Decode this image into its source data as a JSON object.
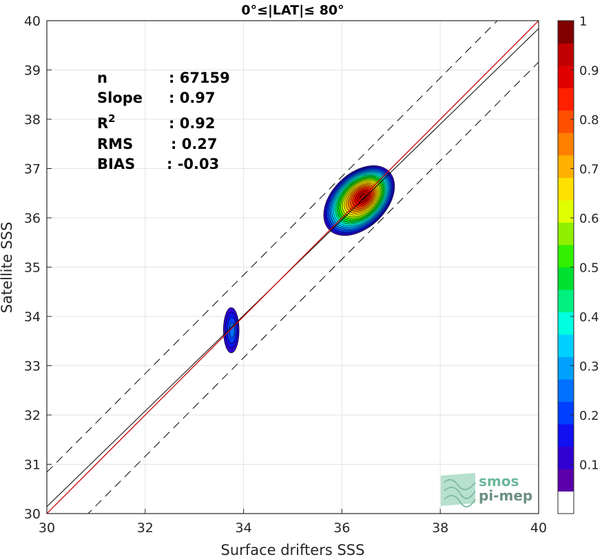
{
  "chart_data": {
    "type": "scatter",
    "title": "0°≤|LAT|≤ 80°",
    "xlabel": "Surface drifters SSS",
    "ylabel": "Satellite SSS",
    "xlim": [
      30,
      40
    ],
    "ylim": [
      30,
      40
    ],
    "x_ticks": [
      "30",
      "32",
      "34",
      "36",
      "38",
      "40"
    ],
    "y_ticks": [
      "30",
      "31",
      "32",
      "33",
      "34",
      "35",
      "36",
      "37",
      "38",
      "39",
      "40"
    ],
    "grid": true,
    "stats": [
      {
        "label": "n",
        "value": ": 67159"
      },
      {
        "label": "Slope",
        "value": ": 0.97"
      },
      {
        "label": "R",
        "sup": "2",
        "value": ": 0.92"
      },
      {
        "label": "RMS",
        "value": ": 0.27"
      },
      {
        "label": "BIAS",
        "value": ": -0.03"
      }
    ],
    "one_to_one_line": {
      "x": [
        30,
        40
      ],
      "y": [
        30,
        40
      ],
      "color": "#cc0000"
    },
    "fit_line": {
      "x": [
        30,
        40
      ],
      "y": [
        30.14,
        39.84
      ],
      "color": "#000000"
    },
    "confidence_lines": [
      {
        "x": [
          30,
          40
        ],
        "y": [
          30.84,
          40.84
        ]
      },
      {
        "x": [
          30,
          40
        ],
        "y": [
          29.16,
          39.16
        ]
      }
    ],
    "density_blobs": [
      {
        "cx": 36.35,
        "cy": 36.35,
        "rx_x": 0.85,
        "rx_y": 0.55,
        "angle_deg": 44,
        "peak": 1.0
      },
      {
        "cx": 33.75,
        "cy": 33.72,
        "rx_x": 0.16,
        "rx_y": 0.46,
        "angle_deg": 0,
        "peak": 0.25
      }
    ],
    "colorbar": {
      "ticks": [
        "0.1",
        "0.2",
        "0.3",
        "0.4",
        "0.5",
        "0.6",
        "0.7",
        "0.8",
        "0.9",
        "1"
      ],
      "range": [
        0,
        1
      ],
      "colors": [
        "#ffffff",
        "#5a00aa",
        "#3000d0",
        "#1010f0",
        "#0040ff",
        "#0070ff",
        "#00a0ff",
        "#00d0ff",
        "#00ffe0",
        "#00f080",
        "#00e030",
        "#30f000",
        "#90f000",
        "#e0ff00",
        "#ffe000",
        "#ffb000",
        "#ff8000",
        "#ff5000",
        "#ff2000",
        "#e00000",
        "#c00000",
        "#800000"
      ]
    }
  },
  "logo": {
    "line1": "smos",
    "line2": "pi-mep",
    "color": "#6cb89a"
  }
}
